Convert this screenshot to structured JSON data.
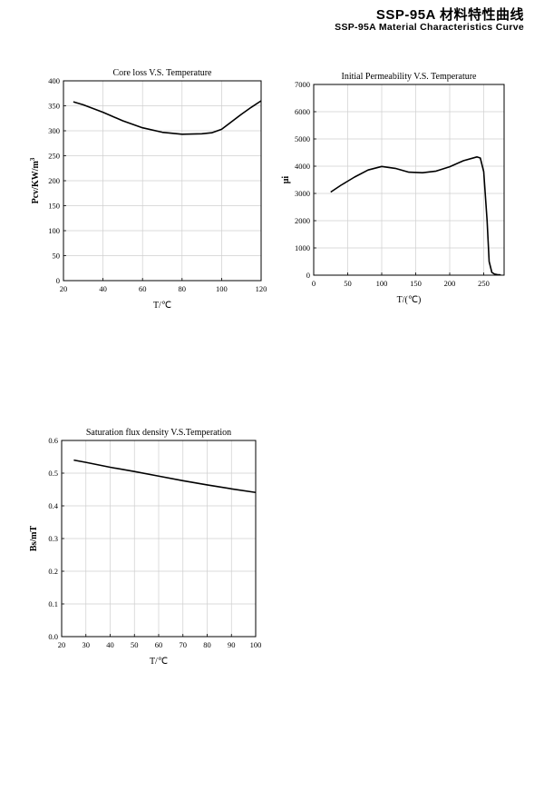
{
  "header": {
    "title": "SSP-95A 材料特性曲线",
    "subtitle": "SSP-95A Material Characteristics Curve"
  },
  "chart_data": [
    {
      "type": "line",
      "title": "Core loss V.S. Temperature",
      "xlabel": "T/℃",
      "ylabel": "Pcv/KW/m",
      "ylabel_sup": "3",
      "xlim": [
        20,
        120
      ],
      "ylim": [
        0,
        400
      ],
      "xticks": [
        20,
        40,
        60,
        80,
        100,
        120
      ],
      "yticks": [
        0,
        50,
        100,
        150,
        200,
        250,
        300,
        350,
        400
      ],
      "grid": true,
      "series": [
        {
          "x": [
            25,
            30,
            40,
            50,
            60,
            70,
            80,
            90,
            95,
            100,
            105,
            110,
            115,
            120
          ],
          "y": [
            358,
            352,
            337,
            320,
            306,
            297,
            293,
            294,
            296,
            303,
            318,
            333,
            347,
            360
          ]
        }
      ]
    },
    {
      "type": "line",
      "title": "Initial Permeability V.S. Temperature",
      "xlabel": "T/(℃)",
      "ylabel": "μi",
      "xlim": [
        0,
        280
      ],
      "ylim": [
        0,
        7000
      ],
      "xticks": [
        0,
        50,
        100,
        150,
        200,
        250
      ],
      "yticks": [
        0,
        1000,
        2000,
        3000,
        4000,
        5000,
        6000,
        7000
      ],
      "grid": true,
      "series": [
        {
          "x": [
            25,
            40,
            60,
            80,
            100,
            120,
            140,
            160,
            180,
            200,
            220,
            240,
            245,
            250,
            255,
            258,
            262,
            266,
            270,
            275
          ],
          "y": [
            3050,
            3300,
            3600,
            3860,
            3990,
            3920,
            3780,
            3760,
            3820,
            3980,
            4200,
            4340,
            4300,
            3800,
            2000,
            500,
            100,
            40,
            20,
            10
          ]
        }
      ]
    },
    {
      "type": "line",
      "title": "Saturation flux density V.S.Temperation",
      "xlabel": "T/℃",
      "ylabel": "Bs/mT",
      "xlim": [
        20,
        100
      ],
      "ylim": [
        0,
        0.6
      ],
      "xticks": [
        20,
        30,
        40,
        50,
        60,
        70,
        80,
        90,
        100
      ],
      "yticks": [
        "0.0",
        "0.1",
        "0.2",
        "0.3",
        "0.4",
        "0.5",
        "0.6"
      ],
      "grid": true,
      "series": [
        {
          "x": [
            25,
            30,
            40,
            50,
            60,
            70,
            80,
            90,
            100
          ],
          "y": [
            0.54,
            0.533,
            0.518,
            0.505,
            0.491,
            0.477,
            0.464,
            0.452,
            0.441
          ]
        }
      ]
    }
  ]
}
